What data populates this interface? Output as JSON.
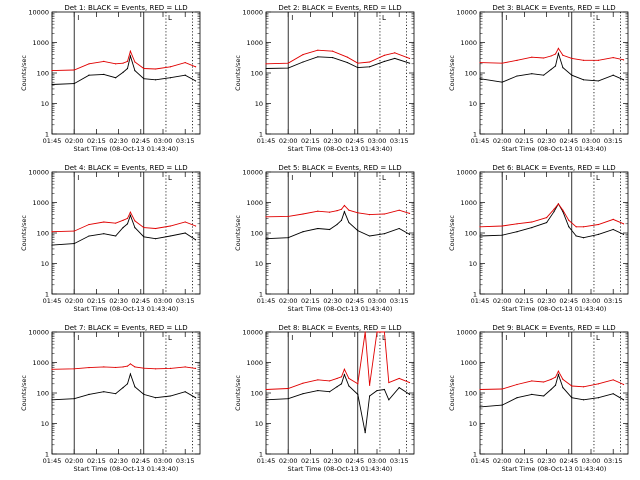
{
  "chart_data": {
    "type": "line",
    "panel_count": 9,
    "layout": "3x3 grid",
    "y_scale": "log",
    "ylim": [
      1,
      10000
    ],
    "y_tick_labels": [
      "1",
      "10",
      "100",
      "1000",
      "10000"
    ],
    "xlim": [
      "01:45",
      "03:25"
    ],
    "x_tick_labels": [
      "01:45",
      "02:00",
      "02:15",
      "02:30",
      "02:45",
      "03:00",
      "03:15"
    ],
    "ylabel": "Counts/sec",
    "xlabel": "Start Time (08-Oct-13 01:43:40)",
    "vertical_markers": {
      "solid": [
        "02:00",
        "02:47"
      ],
      "dotted": [
        "03:02",
        "03:20"
      ],
      "bracket_labels": [
        "I",
        "L"
      ]
    },
    "series_colors": {
      "events": "#000000",
      "lld": "#e00000"
    },
    "panels": [
      {
        "title": "Det 1: BLACK = Events, RED = LLD",
        "series": [
          {
            "name": "Events",
            "color": "#000000",
            "x": [
              "01:45",
              "02:00",
              "02:10",
              "02:20",
              "02:28",
              "02:33",
              "02:36",
              "02:38",
              "02:41",
              "02:47",
              "02:55",
              "03:05",
              "03:15",
              "03:22"
            ],
            "values": [
              42,
              45,
              85,
              90,
              70,
              105,
              140,
              360,
              120,
              65,
              60,
              70,
              85,
              55
            ]
          },
          {
            "name": "LLD",
            "color": "#e00000",
            "x": [
              "01:45",
              "02:00",
              "02:10",
              "02:20",
              "02:28",
              "02:33",
              "02:36",
              "02:38",
              "02:41",
              "02:47",
              "02:55",
              "03:05",
              "03:15",
              "03:22"
            ],
            "values": [
              120,
              125,
              200,
              240,
              200,
              210,
              240,
              520,
              230,
              140,
              135,
              160,
              220,
              160
            ]
          }
        ]
      },
      {
        "title": "Det 2: BLACK = Events, RED = LLD",
        "series": [
          {
            "name": "Events",
            "color": "#000000",
            "x": [
              "01:45",
              "02:00",
              "02:10",
              "02:20",
              "02:30",
              "02:40",
              "02:47",
              "02:55",
              "03:05",
              "03:12",
              "03:22"
            ],
            "values": [
              140,
              145,
              230,
              340,
              320,
              220,
              150,
              160,
              240,
              300,
              210
            ]
          },
          {
            "name": "LLD",
            "color": "#e00000",
            "x": [
              "01:45",
              "02:00",
              "02:10",
              "02:20",
              "02:30",
              "02:40",
              "02:47",
              "02:55",
              "03:05",
              "03:12",
              "03:22"
            ],
            "values": [
              200,
              210,
              400,
              560,
              520,
              330,
              210,
              230,
              380,
              460,
              300
            ]
          }
        ]
      },
      {
        "title": "Det 3: BLACK = Events, RED = LLD",
        "series": [
          {
            "name": "Events",
            "color": "#000000",
            "x": [
              "01:45",
              "02:00",
              "02:10",
              "02:20",
              "02:28",
              "02:33",
              "02:36",
              "02:38",
              "02:41",
              "02:47",
              "02:55",
              "03:05",
              "03:15",
              "03:22"
            ],
            "values": [
              65,
              50,
              80,
              95,
              85,
              130,
              170,
              440,
              150,
              85,
              60,
              55,
              85,
              60
            ]
          },
          {
            "name": "LLD",
            "color": "#e00000",
            "x": [
              "01:45",
              "02:00",
              "02:10",
              "02:20",
              "02:28",
              "02:33",
              "02:36",
              "02:38",
              "02:41",
              "02:47",
              "02:55",
              "03:05",
              "03:15",
              "03:22"
            ],
            "values": [
              220,
              210,
              260,
              330,
              310,
              360,
              420,
              640,
              380,
              300,
              260,
              260,
              320,
              270
            ]
          }
        ]
      },
      {
        "title": "Det 4: BLACK = Events, RED = LLD",
        "series": [
          {
            "name": "Events",
            "color": "#000000",
            "x": [
              "01:45",
              "02:00",
              "02:10",
              "02:20",
              "02:28",
              "02:33",
              "02:36",
              "02:38",
              "02:41",
              "02:47",
              "02:55",
              "03:05",
              "03:15",
              "03:22"
            ],
            "values": [
              40,
              45,
              80,
              95,
              80,
              150,
              200,
              380,
              150,
              75,
              65,
              80,
              100,
              60
            ]
          },
          {
            "name": "LLD",
            "color": "#e00000",
            "x": [
              "01:45",
              "02:00",
              "02:10",
              "02:20",
              "02:28",
              "02:33",
              "02:36",
              "02:38",
              "02:41",
              "02:47",
              "02:55",
              "03:05",
              "03:15",
              "03:22"
            ],
            "values": [
              110,
              115,
              190,
              230,
              210,
              260,
              300,
              480,
              250,
              150,
              140,
              170,
              230,
              170
            ]
          }
        ]
      },
      {
        "title": "Det 5: BLACK = Events, RED = LLD",
        "series": [
          {
            "name": "Events",
            "color": "#000000",
            "x": [
              "01:45",
              "02:00",
              "02:10",
              "02:20",
              "02:28",
              "02:33",
              "02:36",
              "02:38",
              "02:41",
              "02:47",
              "02:55",
              "03:05",
              "03:15",
              "03:22"
            ],
            "values": [
              65,
              70,
              110,
              140,
              130,
              190,
              260,
              500,
              220,
              120,
              80,
              95,
              140,
              90
            ]
          },
          {
            "name": "LLD",
            "color": "#e00000",
            "x": [
              "01:45",
              "02:00",
              "02:10",
              "02:20",
              "02:28",
              "02:33",
              "02:36",
              "02:38",
              "02:41",
              "02:47",
              "02:55",
              "03:05",
              "03:15",
              "03:22"
            ],
            "values": [
              340,
              350,
              420,
              520,
              480,
              540,
              600,
              800,
              560,
              460,
              400,
              420,
              560,
              440
            ]
          }
        ]
      },
      {
        "title": "Det 6: BLACK = Events, RED = LLD",
        "series": [
          {
            "name": "Events",
            "color": "#000000",
            "x": [
              "01:45",
              "02:00",
              "02:10",
              "02:20",
              "02:30",
              "02:35",
              "02:38",
              "02:41",
              "02:45",
              "02:50",
              "02:55",
              "03:05",
              "03:15",
              "03:22"
            ],
            "values": [
              80,
              85,
              110,
              150,
              220,
              500,
              900,
              500,
              160,
              80,
              70,
              90,
              130,
              90
            ]
          },
          {
            "name": "LLD",
            "color": "#e00000",
            "x": [
              "01:45",
              "02:00",
              "02:10",
              "02:20",
              "02:30",
              "02:35",
              "02:38",
              "02:41",
              "02:45",
              "02:50",
              "02:55",
              "03:05",
              "03:15",
              "03:22"
            ],
            "values": [
              160,
              170,
              200,
              230,
              320,
              600,
              900,
              560,
              260,
              160,
              160,
              190,
              280,
              200
            ]
          }
        ]
      },
      {
        "title": "Det 7: BLACK = Events, RED = LLD",
        "series": [
          {
            "name": "Events",
            "color": "#000000",
            "x": [
              "01:45",
              "02:00",
              "02:10",
              "02:20",
              "02:28",
              "02:33",
              "02:36",
              "02:38",
              "02:41",
              "02:47",
              "02:55",
              "03:05",
              "03:15",
              "03:22"
            ],
            "values": [
              60,
              65,
              90,
              110,
              95,
              150,
              200,
              420,
              160,
              90,
              70,
              80,
              110,
              70
            ]
          },
          {
            "name": "LLD",
            "color": "#e00000",
            "x": [
              "01:45",
              "02:00",
              "02:10",
              "02:20",
              "02:28",
              "02:33",
              "02:36",
              "02:38",
              "02:41",
              "02:47",
              "02:55",
              "03:05",
              "03:15",
              "03:22"
            ],
            "values": [
              600,
              620,
              680,
              720,
              690,
              720,
              760,
              900,
              720,
              650,
              620,
              640,
              720,
              640
            ]
          }
        ]
      },
      {
        "title": "Det 8: BLACK = Events, RED = LLD",
        "series": [
          {
            "name": "Events",
            "color": "#000000",
            "x": [
              "01:45",
              "02:00",
              "02:10",
              "02:20",
              "02:28",
              "02:33",
              "02:36",
              "02:38",
              "02:41",
              "02:47",
              "02:52",
              "02:55",
              "03:00",
              "03:05",
              "03:08",
              "03:15",
              "03:22"
            ],
            "values": [
              60,
              65,
              95,
              120,
              110,
              160,
              200,
              400,
              170,
              90,
              5,
              80,
              120,
              130,
              60,
              150,
              90
            ]
          },
          {
            "name": "LLD",
            "color": "#e00000",
            "x": [
              "01:45",
              "02:00",
              "02:10",
              "02:20",
              "02:28",
              "02:33",
              "02:36",
              "02:38",
              "02:41",
              "02:47",
              "02:52",
              "02:55",
              "03:00",
              "03:05",
              "03:08",
              "03:15",
              "03:22"
            ],
            "values": [
              130,
              140,
              210,
              270,
              250,
              300,
              340,
              600,
              300,
              200,
              10000,
              180,
              10000,
              10000,
              220,
              300,
              220
            ]
          }
        ]
      },
      {
        "title": "Det 9: BLACK = Events, RED = LLD",
        "series": [
          {
            "name": "Events",
            "color": "#000000",
            "x": [
              "01:45",
              "02:00",
              "02:10",
              "02:20",
              "02:28",
              "02:33",
              "02:36",
              "02:38",
              "02:41",
              "02:47",
              "02:55",
              "03:05",
              "03:15",
              "03:22"
            ],
            "values": [
              35,
              40,
              70,
              90,
              80,
              130,
              180,
              400,
              150,
              70,
              60,
              70,
              95,
              60
            ]
          },
          {
            "name": "LLD",
            "color": "#e00000",
            "x": [
              "01:45",
              "02:00",
              "02:10",
              "02:20",
              "02:28",
              "02:33",
              "02:36",
              "02:38",
              "02:41",
              "02:47",
              "02:55",
              "03:05",
              "03:15",
              "03:22"
            ],
            "values": [
              130,
              135,
              190,
              250,
              230,
              280,
              330,
              520,
              280,
              170,
              160,
              200,
              270,
              190
            ]
          }
        ]
      }
    ]
  }
}
